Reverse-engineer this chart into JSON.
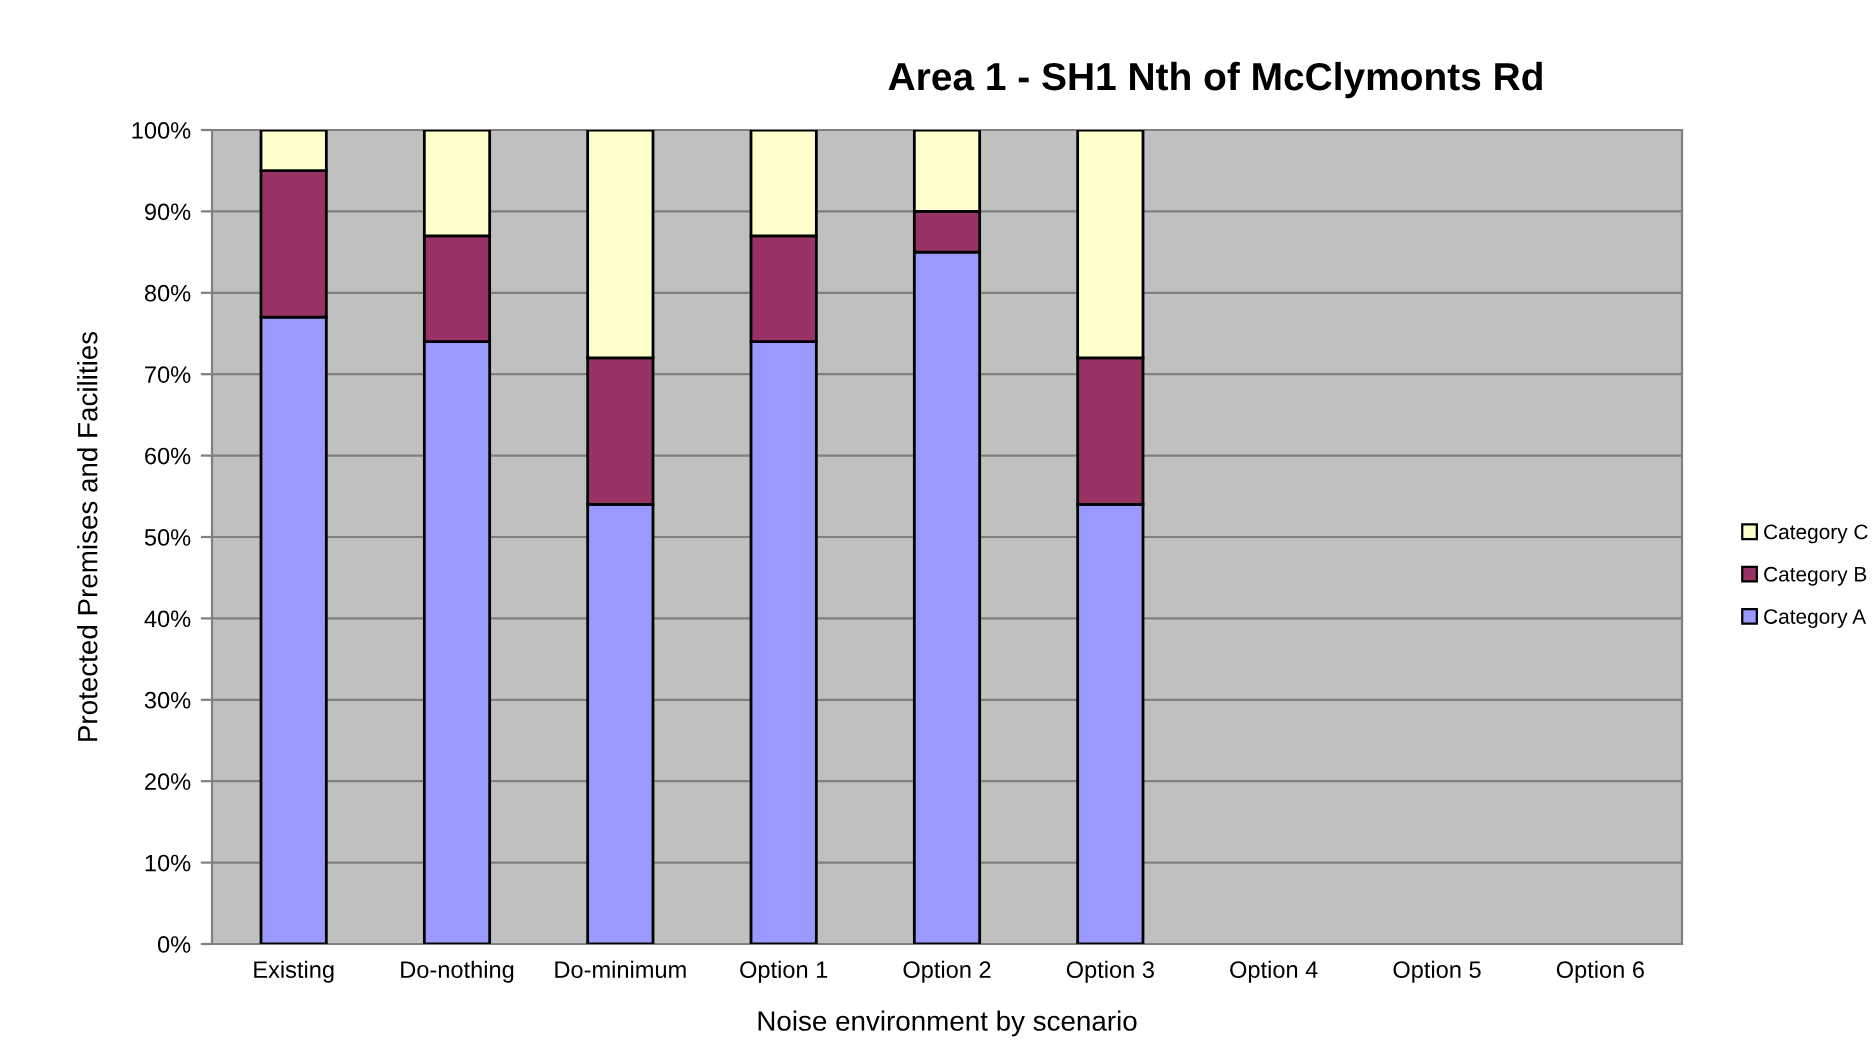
{
  "chart_data": {
    "type": "bar",
    "title": "Area 1 - SH1 Nth of McClymonts Rd",
    "xlabel": "Noise environment by scenario",
    "ylabel": "Protected Premises and Facilities",
    "categories": [
      "Existing",
      "Do-nothing",
      "Do-minimum",
      "Option 1",
      "Option 2",
      "Option 3",
      "Option 4",
      "Option 5",
      "Option 6"
    ],
    "series": [
      {
        "name": "Category A",
        "color": "#9999ff",
        "values": [
          77,
          74,
          54,
          74,
          85,
          54,
          null,
          null,
          null
        ]
      },
      {
        "name": "Category B",
        "color": "#993366",
        "values": [
          18,
          13,
          18,
          13,
          5,
          18,
          null,
          null,
          null
        ]
      },
      {
        "name": "Category C",
        "color": "#ffffcc",
        "values": [
          5,
          13,
          28,
          13,
          10,
          28,
          null,
          null,
          null
        ]
      }
    ],
    "stacked": true,
    "ylim": [
      0,
      100
    ],
    "yticks": [
      {
        "value": 0,
        "label": "0%"
      },
      {
        "value": 10,
        "label": "10%"
      },
      {
        "value": 20,
        "label": "20%"
      },
      {
        "value": 30,
        "label": "30%"
      },
      {
        "value": 40,
        "label": "40%"
      },
      {
        "value": 50,
        "label": "50%"
      },
      {
        "value": 60,
        "label": "60%"
      },
      {
        "value": 70,
        "label": "70%"
      },
      {
        "value": 80,
        "label": "80%"
      },
      {
        "value": 90,
        "label": "90%"
      },
      {
        "value": 100,
        "label": "100%"
      }
    ],
    "grid": "y",
    "legend": "right"
  }
}
